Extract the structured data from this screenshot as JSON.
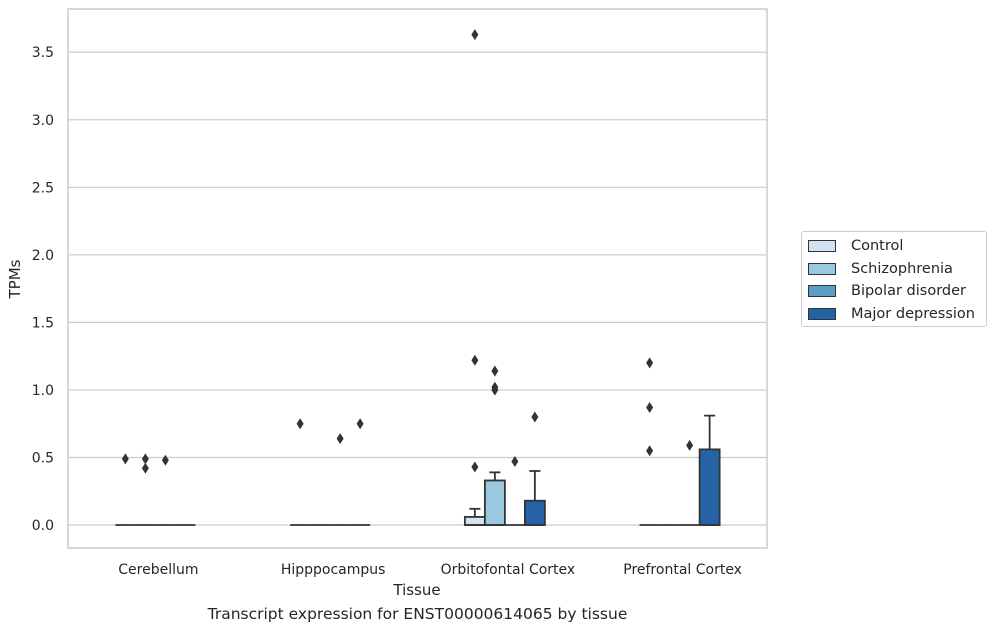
{
  "chart_data": {
    "type": "box",
    "title": "",
    "caption": "Transcript expression for ENST00000614065 by tissue",
    "xlabel": "Tissue",
    "ylabel": "TPMs",
    "ylim": [
      -0.17,
      3.82
    ],
    "yticks": [
      "0.0",
      "0.5",
      "1.0",
      "1.5",
      "2.0",
      "2.5",
      "3.0",
      "3.5"
    ],
    "ytick_values": [
      0,
      0.5,
      1.0,
      1.5,
      2.0,
      2.5,
      3.0,
      3.5
    ],
    "grid": "horizontal",
    "legend_position": "right",
    "categories": [
      "Cerebellum",
      "Hipppocampus",
      "Orbitofontal Cortex",
      "Prefrontal Cortex"
    ],
    "series": [
      {
        "name": "Control",
        "color": "#d2e3f3",
        "boxes": [
          {
            "q1": 0,
            "median": 0,
            "q3": 0,
            "whislo": 0,
            "whishi": 0,
            "fliers": [
              0.49
            ]
          },
          {
            "q1": 0,
            "median": 0,
            "q3": 0,
            "whislo": 0,
            "whishi": 0,
            "fliers": [
              0.75
            ]
          },
          {
            "q1": 0,
            "median": 0,
            "q3": 0.06,
            "whislo": 0,
            "whishi": 0.12,
            "fliers": [
              0.43,
              1.22,
              3.63
            ]
          },
          {
            "q1": 0,
            "median": 0,
            "q3": 0,
            "whislo": 0,
            "whishi": 0,
            "fliers": [
              0.55,
              0.87,
              1.2
            ]
          }
        ]
      },
      {
        "name": "Schizophrenia",
        "color": "#9ac8e0",
        "boxes": [
          {
            "q1": 0,
            "median": 0,
            "q3": 0,
            "whislo": 0,
            "whishi": 0,
            "fliers": [
              0.42,
              0.49
            ]
          },
          {
            "q1": 0,
            "median": 0,
            "q3": 0,
            "whislo": 0,
            "whishi": 0,
            "fliers": []
          },
          {
            "q1": 0,
            "median": 0,
            "q3": 0.33,
            "whislo": 0,
            "whishi": 0.39,
            "fliers": [
              1.0,
              1.02,
              1.14
            ]
          },
          {
            "q1": 0,
            "median": 0,
            "q3": 0,
            "whislo": 0,
            "whishi": 0,
            "fliers": []
          }
        ]
      },
      {
        "name": "Bipolar disorder",
        "color": "#5a9dc8",
        "boxes": [
          {
            "q1": 0,
            "median": 0,
            "q3": 0,
            "whislo": 0,
            "whishi": 0,
            "fliers": [
              0.48
            ]
          },
          {
            "q1": 0,
            "median": 0,
            "q3": 0,
            "whislo": 0,
            "whishi": 0,
            "fliers": [
              0.64
            ]
          },
          {
            "q1": 0,
            "median": 0,
            "q3": 0,
            "whislo": 0,
            "whishi": 0,
            "fliers": [
              0.47
            ]
          },
          {
            "q1": 0,
            "median": 0,
            "q3": 0,
            "whislo": 0,
            "whishi": 0,
            "fliers": [
              0.59
            ]
          }
        ]
      },
      {
        "name": "Major depression",
        "color": "#2563a6",
        "boxes": [
          {
            "q1": 0,
            "median": 0,
            "q3": 0,
            "whislo": 0,
            "whishi": 0,
            "fliers": []
          },
          {
            "q1": 0,
            "median": 0,
            "q3": 0,
            "whislo": 0,
            "whishi": 0,
            "fliers": [
              0.75
            ]
          },
          {
            "q1": 0,
            "median": 0,
            "q3": 0.18,
            "whislo": 0,
            "whishi": 0.4,
            "fliers": [
              0.8
            ]
          },
          {
            "q1": 0,
            "median": 0,
            "q3": 0.56,
            "whislo": 0,
            "whishi": 0.81,
            "fliers": []
          }
        ]
      }
    ]
  }
}
